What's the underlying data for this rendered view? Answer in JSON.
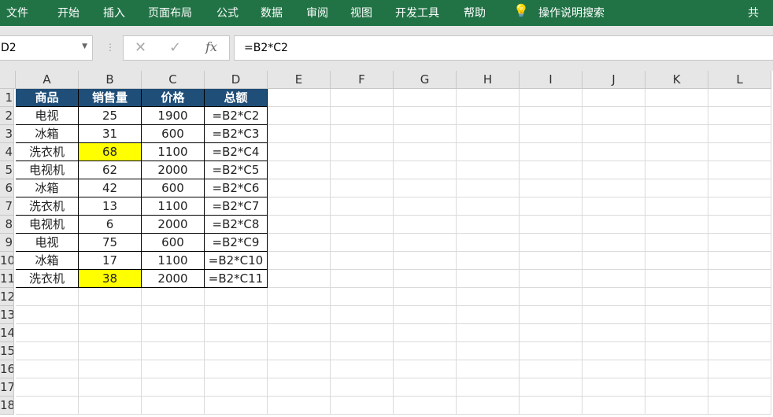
{
  "ribbon": {
    "tabs": [
      "文件",
      "开始",
      "插入",
      "页面布局",
      "公式",
      "数据",
      "审阅",
      "视图",
      "开发工具",
      "帮助"
    ],
    "search": "操作说明搜索",
    "share": "共"
  },
  "formula_bar": {
    "name_box": "D2",
    "cancel": "✕",
    "enter": "✓",
    "fx": "fx",
    "formula": "=B2*C2"
  },
  "columns": [
    "A",
    "B",
    "C",
    "D",
    "E",
    "F",
    "G",
    "H",
    "I",
    "J",
    "K",
    "L"
  ],
  "rows": [
    "1",
    "2",
    "3",
    "4",
    "5",
    "6",
    "7",
    "8",
    "9",
    "10",
    "11",
    "12",
    "13",
    "14",
    "15",
    "16",
    "17",
    "18"
  ],
  "table": {
    "header": [
      "商品",
      "销售量",
      "价格",
      "总额"
    ],
    "rows": [
      [
        "电视",
        "25",
        "1900",
        "=B2*C2"
      ],
      [
        "冰箱",
        "31",
        "600",
        "=B2*C3"
      ],
      [
        "洗衣机",
        "68",
        "1100",
        "=B2*C4"
      ],
      [
        "电视机",
        "62",
        "2000",
        "=B2*C5"
      ],
      [
        "冰箱",
        "42",
        "600",
        "=B2*C6"
      ],
      [
        "洗衣机",
        "13",
        "1100",
        "=B2*C7"
      ],
      [
        "电视机",
        "6",
        "2000",
        "=B2*C8"
      ],
      [
        "电视",
        "75",
        "600",
        "=B2*C9"
      ],
      [
        "冰箱",
        "17",
        "1100",
        "=B2*C10"
      ],
      [
        "洗衣机",
        "38",
        "2000",
        "=B2*C11"
      ]
    ],
    "highlighted_cells": [
      "B4",
      "B11"
    ]
  },
  "colors": {
    "ribbon": "#217346",
    "header_fill": "#1f4e78",
    "highlight": "#ffff00"
  }
}
